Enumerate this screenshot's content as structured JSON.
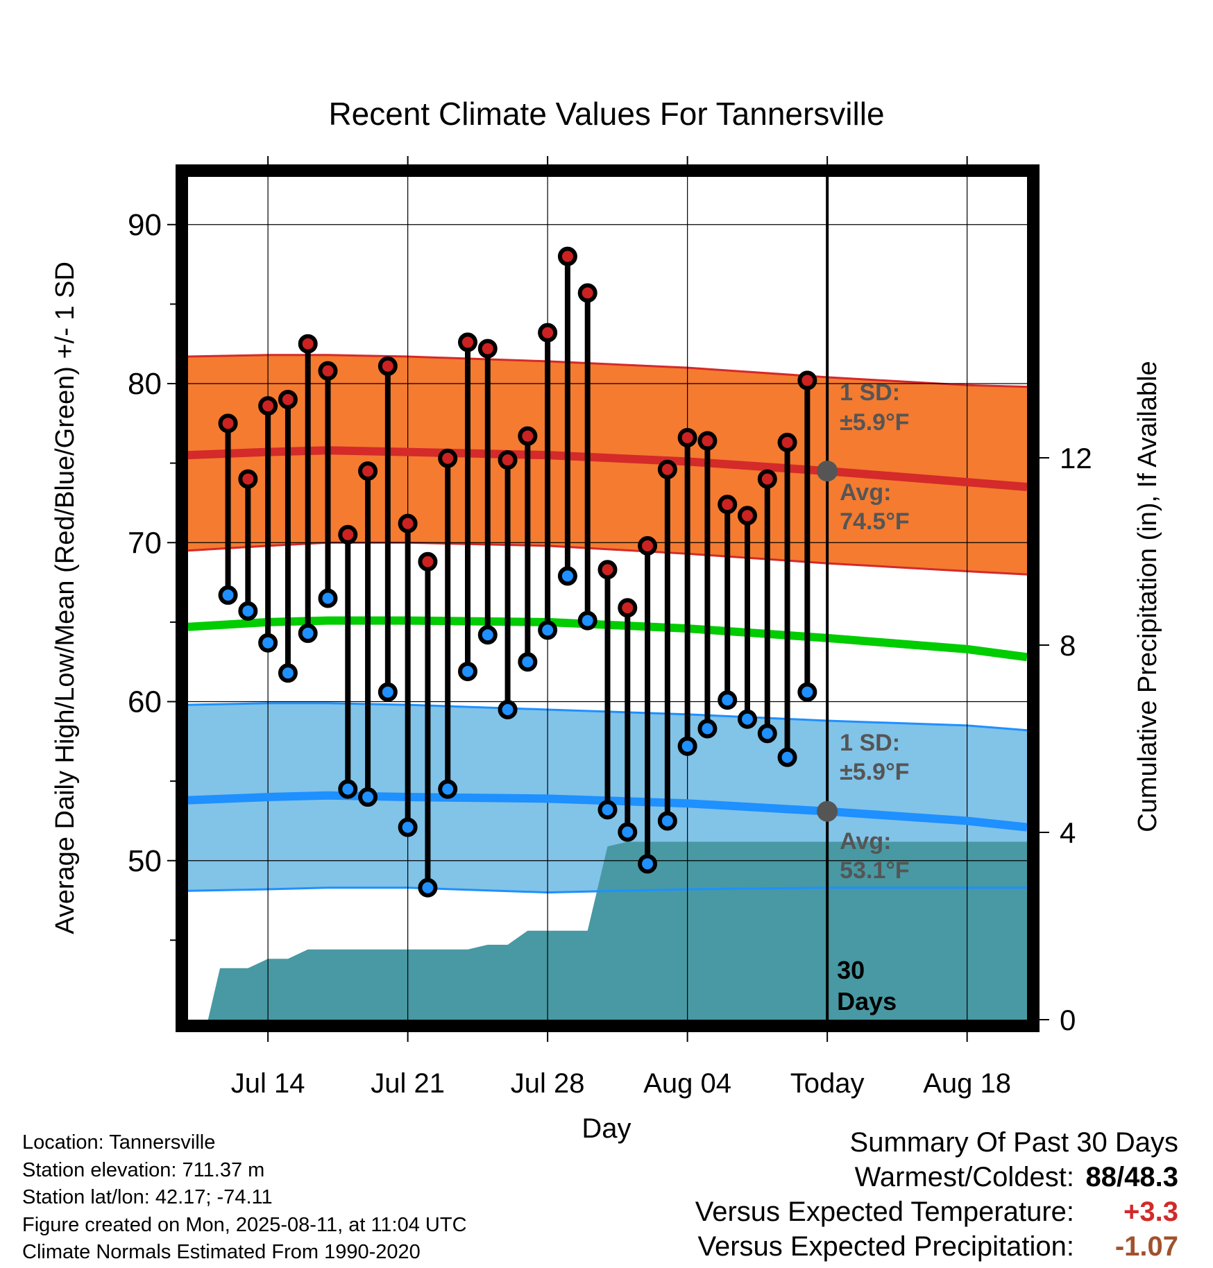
{
  "chart_data": {
    "type": "line",
    "title": "Recent Climate Values For Tannersville",
    "xlabel": "Day",
    "ylabel": "Average Daily High/Low/Mean (Red/Blue/Green) +/- 1 SD",
    "y2label": "Cumulative Precipitation (in), If Available",
    "ylim": [
      40,
      93
    ],
    "y2lim": [
      0,
      18
    ],
    "yticks": [
      50,
      60,
      70,
      80,
      90
    ],
    "y2ticks": [
      0,
      4,
      8,
      12
    ],
    "xlim": [
      "2025-07-10",
      "2025-08-21"
    ],
    "xtick_labels": [
      {
        "date": "2025-07-14",
        "label": "Jul 14"
      },
      {
        "date": "2025-07-21",
        "label": "Jul 21"
      },
      {
        "date": "2025-07-28",
        "label": "Jul 28"
      },
      {
        "date": "2025-08-04",
        "label": "Aug 04"
      },
      {
        "date": "2025-08-11",
        "label": "Today"
      },
      {
        "date": "2025-08-18",
        "label": "Aug 18"
      }
    ],
    "grid": true,
    "colors": {
      "high_band": "#f47b30",
      "high_line": "#d42a2a",
      "low_band": "#82c3e8",
      "low_line": "#1e90ff",
      "mean_line": "#00cc00",
      "precip": "#4899a3",
      "high_marker": "#cc2222",
      "low_marker": "#1e90ff",
      "today_marker": "#555555"
    },
    "normals": {
      "dates": [
        "2025-07-10",
        "2025-07-14",
        "2025-07-17",
        "2025-07-21",
        "2025-07-28",
        "2025-08-04",
        "2025-08-11",
        "2025-08-18",
        "2025-08-21"
      ],
      "high_avg": [
        75.5,
        75.7,
        75.8,
        75.7,
        75.5,
        75.1,
        74.5,
        73.8,
        73.5
      ],
      "high_upper": [
        81.7,
        81.8,
        81.8,
        81.7,
        81.4,
        81.0,
        80.4,
        79.9,
        79.8
      ],
      "high_lower": [
        69.5,
        69.8,
        70.0,
        70.0,
        69.8,
        69.3,
        68.7,
        68.2,
        68.0
      ],
      "mean": [
        64.7,
        65.0,
        65.1,
        65.1,
        65.0,
        64.6,
        64.0,
        63.3,
        62.8
      ],
      "low_avg": [
        53.8,
        54.0,
        54.1,
        54.0,
        53.9,
        53.6,
        53.1,
        52.5,
        52.1
      ],
      "low_upper": [
        59.8,
        59.9,
        59.9,
        59.8,
        59.5,
        59.2,
        58.8,
        58.5,
        58.2
      ],
      "low_lower": [
        48.1,
        48.2,
        48.3,
        48.3,
        48.0,
        48.2,
        48.3,
        48.3,
        48.3
      ]
    },
    "series": [
      {
        "name": "High",
        "x": [
          "2025-07-12",
          "2025-07-13",
          "2025-07-14",
          "2025-07-15",
          "2025-07-16",
          "2025-07-17",
          "2025-07-18",
          "2025-07-19",
          "2025-07-20",
          "2025-07-21",
          "2025-07-22",
          "2025-07-23",
          "2025-07-24",
          "2025-07-25",
          "2025-07-26",
          "2025-07-27",
          "2025-07-28",
          "2025-07-29",
          "2025-07-30",
          "2025-07-31",
          "2025-08-01",
          "2025-08-02",
          "2025-08-03",
          "2025-08-04",
          "2025-08-05",
          "2025-08-06",
          "2025-08-07",
          "2025-08-08",
          "2025-08-09",
          "2025-08-10"
        ],
        "values": [
          77.5,
          74.0,
          78.6,
          79.0,
          82.5,
          80.8,
          70.5,
          74.5,
          81.1,
          71.2,
          68.8,
          75.3,
          82.6,
          82.2,
          75.2,
          76.7,
          83.2,
          88.0,
          85.7,
          68.3,
          65.9,
          69.8,
          74.6,
          76.6,
          76.4,
          72.4,
          71.7,
          74.0,
          76.3,
          80.2
        ]
      },
      {
        "name": "Low",
        "x": [
          "2025-07-12",
          "2025-07-13",
          "2025-07-14",
          "2025-07-15",
          "2025-07-16",
          "2025-07-17",
          "2025-07-18",
          "2025-07-19",
          "2025-07-20",
          "2025-07-21",
          "2025-07-22",
          "2025-07-23",
          "2025-07-24",
          "2025-07-25",
          "2025-07-26",
          "2025-07-27",
          "2025-07-28",
          "2025-07-29",
          "2025-07-30",
          "2025-07-31",
          "2025-08-01",
          "2025-08-02",
          "2025-08-03",
          "2025-08-04",
          "2025-08-05",
          "2025-08-06",
          "2025-08-07",
          "2025-08-08",
          "2025-08-09",
          "2025-08-10"
        ],
        "values": [
          66.7,
          65.7,
          63.7,
          61.8,
          64.3,
          66.5,
          54.5,
          54.0,
          60.6,
          52.1,
          48.3,
          54.5,
          61.9,
          64.2,
          59.5,
          62.5,
          64.5,
          67.9,
          65.1,
          53.2,
          51.8,
          49.8,
          52.5,
          57.2,
          58.3,
          60.1,
          58.9,
          58.0,
          56.5,
          60.6
        ]
      }
    ],
    "precip": {
      "x": [
        "2025-07-11",
        "2025-07-11.6",
        "2025-07-12",
        "2025-07-12.6",
        "2025-07-13",
        "2025-07-14",
        "2025-07-15",
        "2025-07-16",
        "2025-07-17",
        "2025-07-24",
        "2025-07-25",
        "2025-07-26",
        "2025-07-27",
        "2025-07-28",
        "2025-07-30",
        "2025-07-31",
        "2025-08-01",
        "2025-08-21"
      ],
      "values": [
        0.0,
        1.1,
        1.1,
        1.1,
        1.1,
        1.3,
        1.3,
        1.5,
        1.5,
        1.5,
        1.6,
        1.6,
        1.9,
        1.9,
        1.9,
        3.7,
        3.8,
        3.8
      ]
    },
    "annotations": {
      "high_sd": "1 SD:",
      "high_sd_value": "±5.9°F",
      "high_avg_label": "Avg:",
      "high_avg_value": "74.5°F",
      "low_sd": "1 SD:",
      "low_sd_value": "±5.9°F",
      "low_avg_label": "Avg:",
      "low_avg_value": "53.1°F",
      "days_count": "30",
      "days_label": "Days"
    }
  },
  "info": {
    "location": "Location: Tannersville",
    "elevation": "Station elevation: 711.37 m",
    "latlon": "Station lat/lon: 42.17; -74.11",
    "created": "Figure created on Mon, 2025-08-11, at 11:04 UTC",
    "normals": "Climate Normals Estimated From 1990-2020"
  },
  "summary": {
    "title": "Summary Of Past 30 Days",
    "warm_cold_label": "Warmest/Coldest:",
    "warm_value": "88",
    "cold_value": "48.3",
    "temp_label": "Versus Expected Temperature:",
    "temp_value": "+3.3",
    "precip_label": "Versus Expected Precipitation:",
    "precip_value": "-1.07"
  }
}
